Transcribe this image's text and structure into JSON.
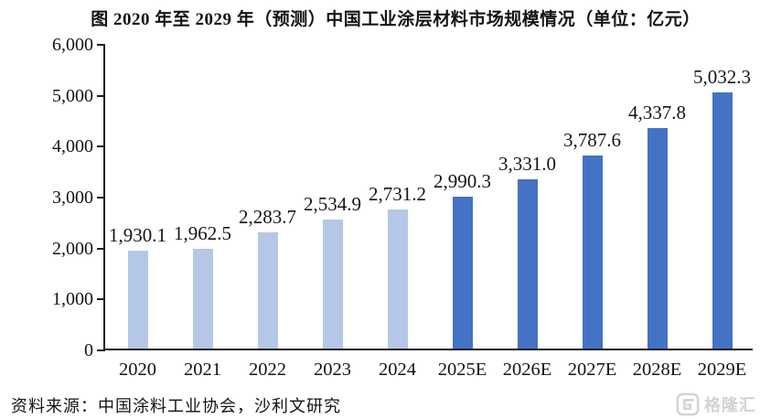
{
  "page": {
    "title": "图  2020 年至 2029 年（预测）中国工业涂层材料市场规模情况（单位：亿元）",
    "source": "资料来源：中国涂料工业协会，沙利文研究",
    "watermark_text": "格隆汇"
  },
  "colors": {
    "historical_bar": "#b4c7e7",
    "forecast_bar": "#4472c4",
    "axis": "#1f1f1f",
    "text": "#141414",
    "watermark": "#d2d2d2"
  },
  "chart_data": {
    "type": "bar",
    "title": "2020年至2029年（预测）中国工业涂层材料市场规模情况",
    "unit": "亿元",
    "categories": [
      "2020",
      "2021",
      "2022",
      "2023",
      "2024",
      "2025E",
      "2026E",
      "2027E",
      "2028E",
      "2029E"
    ],
    "values": [
      1930.1,
      1962.5,
      2283.7,
      2534.9,
      2731.2,
      2990.3,
      3331.0,
      3787.6,
      4337.8,
      5032.3
    ],
    "value_labels": [
      "1,930.1",
      "1,962.5",
      "2,283.7",
      "2,534.9",
      "2,731.2",
      "2,990.3",
      "3,331.0",
      "3,787.6",
      "4,337.8",
      "5,032.3"
    ],
    "forecast_from_index": 5,
    "ylim": [
      0,
      6000
    ],
    "ytick_labels": [
      "0",
      "1,000",
      "2,000",
      "3,000",
      "4,000",
      "5,000",
      "6,000"
    ],
    "grid": false,
    "legend": "none",
    "xlabel": "",
    "ylabel": ""
  }
}
